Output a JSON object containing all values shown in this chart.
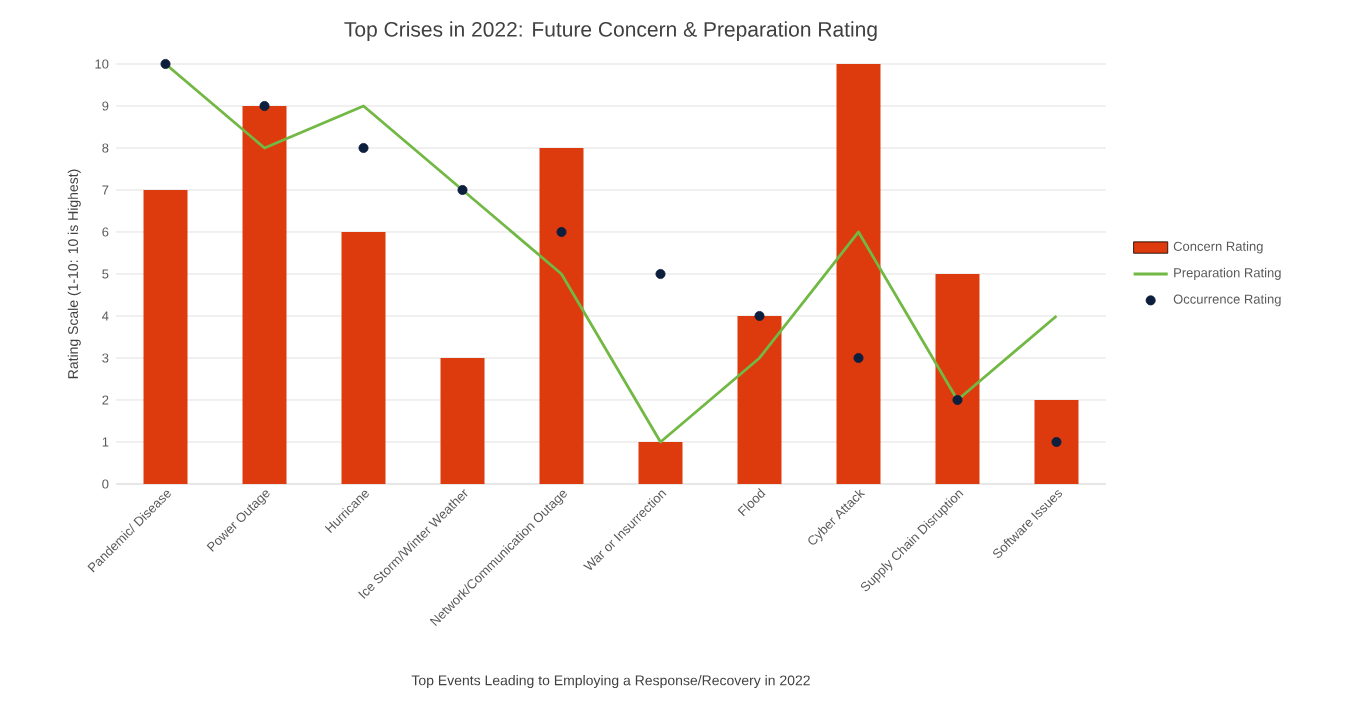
{
  "chart_data": {
    "type": "bar",
    "title": "Top Crises in 2022: Future Concern & Preparation Rating",
    "xlabel": "Top Events Leading to Employing a Response/Recovery in 2022",
    "ylabel": "Rating Scale (1-10: 10 is Highest)",
    "categories": [
      "Pandemic/ Disease",
      "Power Outage",
      "Hurricane",
      "Ice Storm/Winter Weather",
      "Network/Communication Outage",
      "War or Insurrection",
      "Flood",
      "Cyber Attack",
      "Supply Chain Disruption",
      "Software Issues"
    ],
    "series": [
      {
        "name": "Concern Rating",
        "color": "#dd3a0e",
        "values": [
          7,
          9,
          6,
          3,
          8,
          1,
          4,
          10,
          5,
          2
        ]
      },
      {
        "name": "Preparation Rating",
        "type": "line",
        "color": "#72b844",
        "values": [
          10,
          8,
          9,
          7,
          5,
          1,
          3,
          6,
          2,
          4
        ]
      },
      {
        "name": "Occurrence Rating",
        "type": "scatter",
        "marker": "circle",
        "color": "#0e1f3d",
        "values": [
          10,
          9,
          8,
          7,
          6,
          5,
          4,
          3,
          2,
          1
        ]
      }
    ],
    "ylim": [
      0,
      10
    ],
    "yticks": [
      0,
      1,
      2,
      3,
      4,
      5,
      6,
      7,
      8,
      9,
      10
    ],
    "grid": "y",
    "legend": "right"
  }
}
